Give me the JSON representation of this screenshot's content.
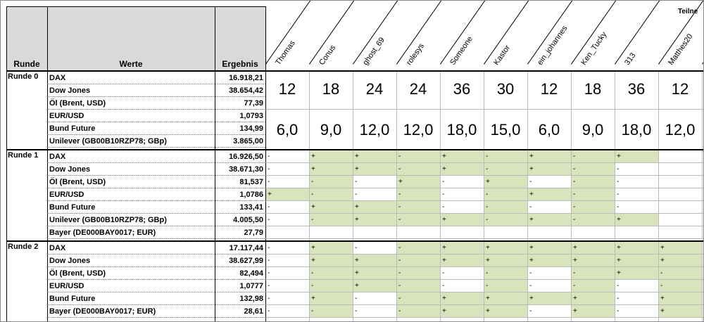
{
  "header": {
    "runde": "Runde",
    "werte": "Werte",
    "ergebnis": "Ergebnis",
    "teilnehmer": "Teilne"
  },
  "players": [
    "Thomas",
    "Conus",
    "ghost_69",
    "rolesys",
    "Someone",
    "Kastor",
    "ein_johannes",
    "Ken_Tucky",
    "313",
    "Matthes20"
  ],
  "rounds": [
    {
      "label": "Runde 0",
      "rows": [
        {
          "name": "DAX",
          "result": "16.918,21"
        },
        {
          "name": "Dow Jones",
          "result": "38.654,42"
        },
        {
          "name": "Öl (Brent, USD)",
          "result": "77,39"
        },
        {
          "name": "EUR/USD",
          "result": "1,0793"
        },
        {
          "name": "Bund Future",
          "result": "134,99"
        },
        {
          "name": "Unilever (GB00B10RZP78; GBp)",
          "result": "3.865,00"
        }
      ],
      "bets": [
        "12",
        "18",
        "24",
        "24",
        "36",
        "30",
        "12",
        "18",
        "36",
        "12"
      ],
      "stakes": [
        "6,0",
        "9,0",
        "12,0",
        "12,0",
        "18,0",
        "15,0",
        "6,0",
        "9,0",
        "18,0",
        "12,0"
      ]
    },
    {
      "label": "Runde 1",
      "rows": [
        {
          "name": "DAX",
          "result": "16.926,50",
          "marks": [
            "-",
            "+",
            "+",
            "-",
            "+",
            "-",
            "+",
            "-",
            "+",
            ""
          ]
        },
        {
          "name": "Dow Jones",
          "result": "38.671,30",
          "marks": [
            "-",
            "+",
            "+",
            "-",
            "+",
            "-",
            "+",
            "-",
            "-",
            ""
          ]
        },
        {
          "name": "Öl (Brent, USD)",
          "result": "81,537",
          "marks": [
            "-",
            "-",
            "-",
            "+",
            "-",
            "+",
            "-",
            "-",
            "-",
            ""
          ]
        },
        {
          "name": "EUR/USD",
          "result": "1,0786",
          "marks": [
            "+",
            "-",
            "-",
            "-",
            "-",
            "-",
            "+",
            "-",
            "-",
            ""
          ]
        },
        {
          "name": "Bund Future",
          "result": "133,41",
          "marks": [
            "-",
            "+",
            "+",
            "-",
            "-",
            "-",
            "-",
            "-",
            "-",
            ""
          ]
        },
        {
          "name": "Unilever (GB00B10RZP78; GBp)",
          "result": "4.005,50",
          "marks": [
            "-",
            "-",
            "+",
            "-",
            "+",
            "-",
            "+",
            "-",
            "+",
            ""
          ]
        },
        {
          "name": "Bayer (DE000BAY0017; EUR)",
          "result": "27,79",
          "marks": [
            "",
            "",
            "",
            "",
            "",
            "",
            "",
            "",
            "",
            ""
          ]
        }
      ]
    },
    {
      "label": "Runde 2",
      "rows": [
        {
          "name": "DAX",
          "result": "17.117,44",
          "marks": [
            "-",
            "+",
            "-",
            "-",
            "+",
            "+",
            "+",
            "+",
            "+",
            "+"
          ]
        },
        {
          "name": "Dow Jones",
          "result": "38.627,99",
          "marks": [
            "-",
            "+",
            "+",
            "-",
            "+",
            "+",
            "+",
            "+",
            "+",
            "+"
          ]
        },
        {
          "name": "Öl (Brent, USD)",
          "result": "82,494",
          "marks": [
            "-",
            "-",
            "+",
            "-",
            "-",
            "-",
            "-",
            "-",
            "+",
            "-"
          ]
        },
        {
          "name": "EUR/USD",
          "result": "1,0777",
          "marks": [
            "-",
            "-",
            "+",
            "-",
            "-",
            "-",
            "-",
            "-",
            "-",
            "-"
          ]
        },
        {
          "name": "Bund Future",
          "result": "132,98",
          "marks": [
            "-",
            "+",
            "-",
            "-",
            "+",
            "+",
            "+",
            "+",
            "-",
            "+"
          ]
        },
        {
          "name": "Bayer (DE000BAY0017; EUR)",
          "result": "28,61",
          "marks": [
            "-",
            "-",
            "-",
            "-",
            "+",
            "+",
            "-",
            "+",
            "-",
            "+"
          ]
        }
      ]
    }
  ],
  "colors": {
    "header_gray": "#d9d9d9",
    "green_fill": "#d8e4bc",
    "border": "#000000"
  }
}
